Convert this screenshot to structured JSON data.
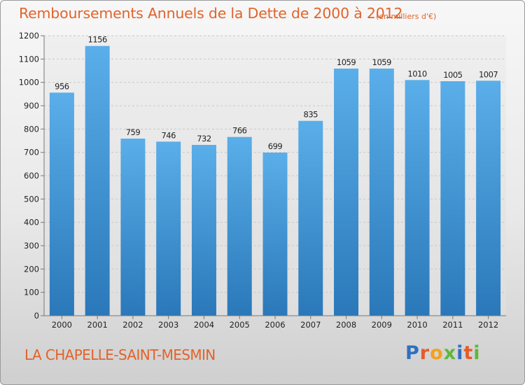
{
  "chart_data": {
    "type": "bar",
    "title": "Remboursements Annuels de la Dette de 2000 à 2012",
    "subtitle": "(en milliers d'€)",
    "categories": [
      "2000",
      "2001",
      "2002",
      "2003",
      "2004",
      "2005",
      "2006",
      "2007",
      "2008",
      "2009",
      "2010",
      "2011",
      "2012"
    ],
    "values": [
      956,
      1156,
      759,
      746,
      732,
      766,
      699,
      835,
      1059,
      1059,
      1010,
      1005,
      1007
    ],
    "value_labels": [
      "956",
      "1156",
      "759",
      "746",
      "732",
      "766",
      "699",
      "835",
      "1059",
      "1059",
      "1010",
      "1005",
      "1007"
    ],
    "yticks": [
      "0",
      "100",
      "200",
      "300",
      "400",
      "500",
      "600",
      "700",
      "800",
      "900",
      "1000",
      "1100",
      "1200"
    ],
    "ylim": [
      0,
      1200
    ],
    "grid": true,
    "legend": "none",
    "bar_color_top": "#5aaee9",
    "bar_color_bottom": "#2a78b9"
  },
  "footer": {
    "commune": "LA CHAPELLE-SAINT-MESMIN",
    "logo_letters": [
      "P",
      "r",
      "o",
      "x",
      "i",
      "t",
      "i"
    ],
    "logo_colors": [
      "#2f6fc1",
      "#e65b2a",
      "#f2a11c",
      "#5fb83a",
      "#2f6fc1",
      "#e65b2a",
      "#5fb83a"
    ]
  },
  "colors": {
    "title": "#e2632a",
    "grid": "#c8c8c8",
    "axis_text": "#222222"
  }
}
